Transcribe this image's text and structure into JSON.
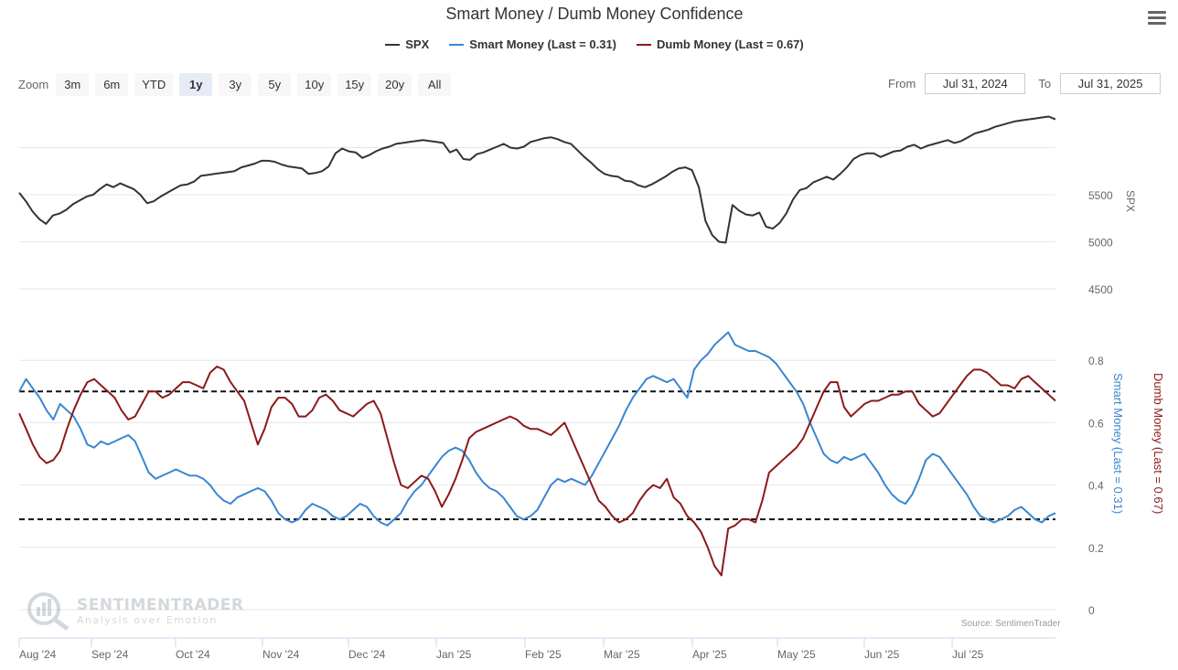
{
  "title": "Smart Money / Dumb Money Confidence",
  "legend": [
    {
      "label": "SPX",
      "color": "#333333"
    },
    {
      "label": "Smart Money (Last = 0.31)",
      "color": "#3a86d1"
    },
    {
      "label": "Dumb Money (Last = 0.67)",
      "color": "#8b1a1a"
    }
  ],
  "zoom": {
    "label": "Zoom",
    "buttons": [
      "3m",
      "6m",
      "YTD",
      "1y",
      "3y",
      "5y",
      "10y",
      "15y",
      "20y",
      "All"
    ],
    "active": "1y"
  },
  "range": {
    "from_label": "From",
    "from_value": "Jul 31, 2024",
    "to_label": "To",
    "to_value": "Jul 31, 2025"
  },
  "watermark": {
    "name": "SENTIMENTRADER",
    "tagline": "Analysis over Emotion"
  },
  "source": "Source: SentimenTrader",
  "chart_data": [
    {
      "type": "line",
      "title": "Smart Money / Dumb Money Confidence",
      "x_ticks": [
        "Aug '24",
        "Sep '24",
        "Oct '24",
        "Nov '24",
        "Dec '24",
        "Jan '25",
        "Feb '25",
        "Mar '25",
        "Apr '25",
        "May '25",
        "Jun '25",
        "Jul '25"
      ],
      "xlim": [
        "2024-07-31",
        "2025-07-31"
      ],
      "ylabel": "SPX",
      "yticks": [
        5500,
        5000,
        4500
      ],
      "ylim": [
        4500,
        6350
      ],
      "series": [
        {
          "name": "SPX",
          "color": "#333333",
          "values": [
            5520,
            5430,
            5320,
            5240,
            5190,
            5280,
            5300,
            5340,
            5400,
            5440,
            5480,
            5500,
            5560,
            5610,
            5580,
            5620,
            5590,
            5560,
            5500,
            5410,
            5430,
            5480,
            5520,
            5560,
            5600,
            5610,
            5640,
            5700,
            5710,
            5720,
            5730,
            5740,
            5750,
            5790,
            5810,
            5830,
            5860,
            5860,
            5850,
            5820,
            5800,
            5790,
            5780,
            5720,
            5730,
            5750,
            5800,
            5940,
            5990,
            5960,
            5950,
            5890,
            5920,
            5960,
            5990,
            6010,
            6040,
            6050,
            6060,
            6070,
            6080,
            6070,
            6060,
            6050,
            5950,
            5980,
            5880,
            5870,
            5930,
            5950,
            5980,
            6010,
            6040,
            6000,
            5990,
            6010,
            6060,
            6080,
            6100,
            6110,
            6090,
            6060,
            6040,
            5970,
            5900,
            5840,
            5770,
            5720,
            5700,
            5690,
            5650,
            5640,
            5600,
            5580,
            5610,
            5650,
            5690,
            5740,
            5780,
            5790,
            5760,
            5580,
            5220,
            5070,
            5000,
            4990,
            5390,
            5330,
            5290,
            5280,
            5310,
            5160,
            5140,
            5200,
            5300,
            5450,
            5550,
            5570,
            5630,
            5660,
            5690,
            5660,
            5720,
            5790,
            5880,
            5920,
            5940,
            5940,
            5900,
            5930,
            5960,
            5970,
            6010,
            6030,
            5990,
            6020,
            6040,
            6060,
            6080,
            6050,
            6070,
            6110,
            6150,
            6170,
            6190,
            6220,
            6240,
            6260,
            6280,
            6290,
            6300,
            6310,
            6320,
            6330,
            6300
          ]
        },
        {
          "name": "Smart Money",
          "color": "#3a86d1",
          "values": [
            0.7,
            0.74,
            0.71,
            0.68,
            0.64,
            0.61,
            0.66,
            0.64,
            0.62,
            0.58,
            0.53,
            0.52,
            0.54,
            0.53,
            0.54,
            0.55,
            0.56,
            0.54,
            0.49,
            0.44,
            0.42,
            0.43,
            0.44,
            0.45,
            0.44,
            0.43,
            0.43,
            0.42,
            0.4,
            0.37,
            0.35,
            0.34,
            0.36,
            0.37,
            0.38,
            0.39,
            0.38,
            0.35,
            0.31,
            0.29,
            0.28,
            0.29,
            0.32,
            0.34,
            0.33,
            0.32,
            0.3,
            0.29,
            0.3,
            0.32,
            0.34,
            0.33,
            0.3,
            0.28,
            0.27,
            0.29,
            0.31,
            0.35,
            0.38,
            0.4,
            0.43,
            0.46,
            0.49,
            0.51,
            0.52,
            0.51,
            0.48,
            0.44,
            0.41,
            0.39,
            0.38,
            0.36,
            0.33,
            0.3,
            0.29,
            0.3,
            0.32,
            0.36,
            0.4,
            0.42,
            0.41,
            0.42,
            0.41,
            0.4,
            0.43,
            0.47,
            0.51,
            0.55,
            0.59,
            0.64,
            0.68,
            0.71,
            0.74,
            0.75,
            0.74,
            0.73,
            0.74,
            0.71,
            0.68,
            0.77,
            0.8,
            0.82,
            0.85,
            0.87,
            0.89,
            0.85,
            0.84,
            0.83,
            0.83,
            0.82,
            0.81,
            0.79,
            0.76,
            0.73,
            0.7,
            0.66,
            0.6,
            0.55,
            0.5,
            0.48,
            0.47,
            0.49,
            0.48,
            0.49,
            0.5,
            0.47,
            0.44,
            0.4,
            0.37,
            0.35,
            0.34,
            0.37,
            0.42,
            0.48,
            0.5,
            0.49,
            0.46,
            0.43,
            0.4,
            0.37,
            0.33,
            0.3,
            0.29,
            0.28,
            0.29,
            0.3,
            0.32,
            0.33,
            0.31,
            0.29,
            0.28,
            0.3,
            0.31
          ]
        },
        {
          "name": "Dumb Money",
          "color": "#8b1a1a",
          "values": [
            0.63,
            0.58,
            0.53,
            0.49,
            0.47,
            0.48,
            0.51,
            0.58,
            0.64,
            0.69,
            0.73,
            0.74,
            0.72,
            0.7,
            0.68,
            0.64,
            0.61,
            0.62,
            0.66,
            0.7,
            0.7,
            0.68,
            0.69,
            0.71,
            0.73,
            0.73,
            0.72,
            0.71,
            0.76,
            0.78,
            0.77,
            0.73,
            0.7,
            0.67,
            0.6,
            0.53,
            0.58,
            0.65,
            0.68,
            0.68,
            0.66,
            0.62,
            0.62,
            0.64,
            0.68,
            0.69,
            0.67,
            0.64,
            0.63,
            0.62,
            0.64,
            0.66,
            0.67,
            0.63,
            0.55,
            0.47,
            0.4,
            0.39,
            0.41,
            0.43,
            0.42,
            0.38,
            0.33,
            0.37,
            0.42,
            0.48,
            0.55,
            0.57,
            0.58,
            0.59,
            0.6,
            0.61,
            0.62,
            0.61,
            0.59,
            0.58,
            0.58,
            0.57,
            0.56,
            0.58,
            0.6,
            0.55,
            0.5,
            0.45,
            0.4,
            0.35,
            0.33,
            0.3,
            0.28,
            0.29,
            0.31,
            0.35,
            0.38,
            0.4,
            0.39,
            0.42,
            0.36,
            0.34,
            0.3,
            0.28,
            0.25,
            0.2,
            0.14,
            0.11,
            0.26,
            0.27,
            0.29,
            0.29,
            0.28,
            0.35,
            0.44,
            0.46,
            0.48,
            0.5,
            0.52,
            0.55,
            0.6,
            0.65,
            0.7,
            0.73,
            0.73,
            0.65,
            0.62,
            0.64,
            0.66,
            0.67,
            0.67,
            0.68,
            0.69,
            0.69,
            0.7,
            0.7,
            0.66,
            0.64,
            0.62,
            0.63,
            0.66,
            0.69,
            0.72,
            0.75,
            0.77,
            0.77,
            0.76,
            0.74,
            0.72,
            0.72,
            0.71,
            0.74,
            0.75,
            0.73,
            0.71,
            0.69,
            0.67
          ]
        }
      ],
      "y2_label_left": "Smart Money (Last = 0.31)",
      "y2_label_right": "Dumb Money (Last = 0.67)",
      "y2ticks": [
        0.8,
        0.6,
        0.4,
        0.2,
        0
      ],
      "y2lim": [
        0,
        0.9
      ],
      "reference_lines": [
        0.7,
        0.29
      ]
    }
  ]
}
